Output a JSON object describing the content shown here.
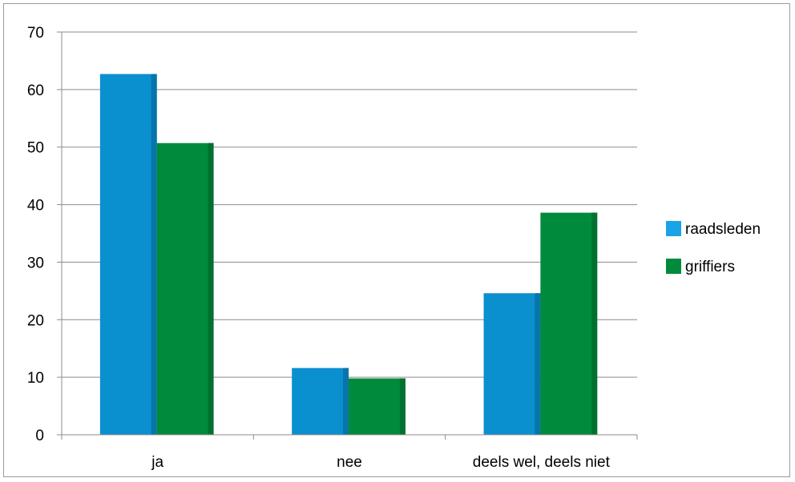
{
  "chart_data": {
    "type": "bar",
    "title": "",
    "xlabel": "",
    "ylabel": "",
    "categories": [
      "ja",
      "nee",
      "deels wel, deels niet"
    ],
    "series": [
      {
        "name": "raadsleden",
        "values": [
          62.7,
          11.6,
          24.6
        ],
        "color": "#0a8fcf"
      },
      {
        "name": "griffiers",
        "values": [
          50.7,
          9.8,
          38.6
        ],
        "color": "#008a3c"
      }
    ],
    "ylim": [
      0,
      70
    ],
    "yticks": [
      0,
      10,
      20,
      30,
      40,
      50,
      60,
      70
    ],
    "grid": true,
    "legend_position": "right"
  }
}
